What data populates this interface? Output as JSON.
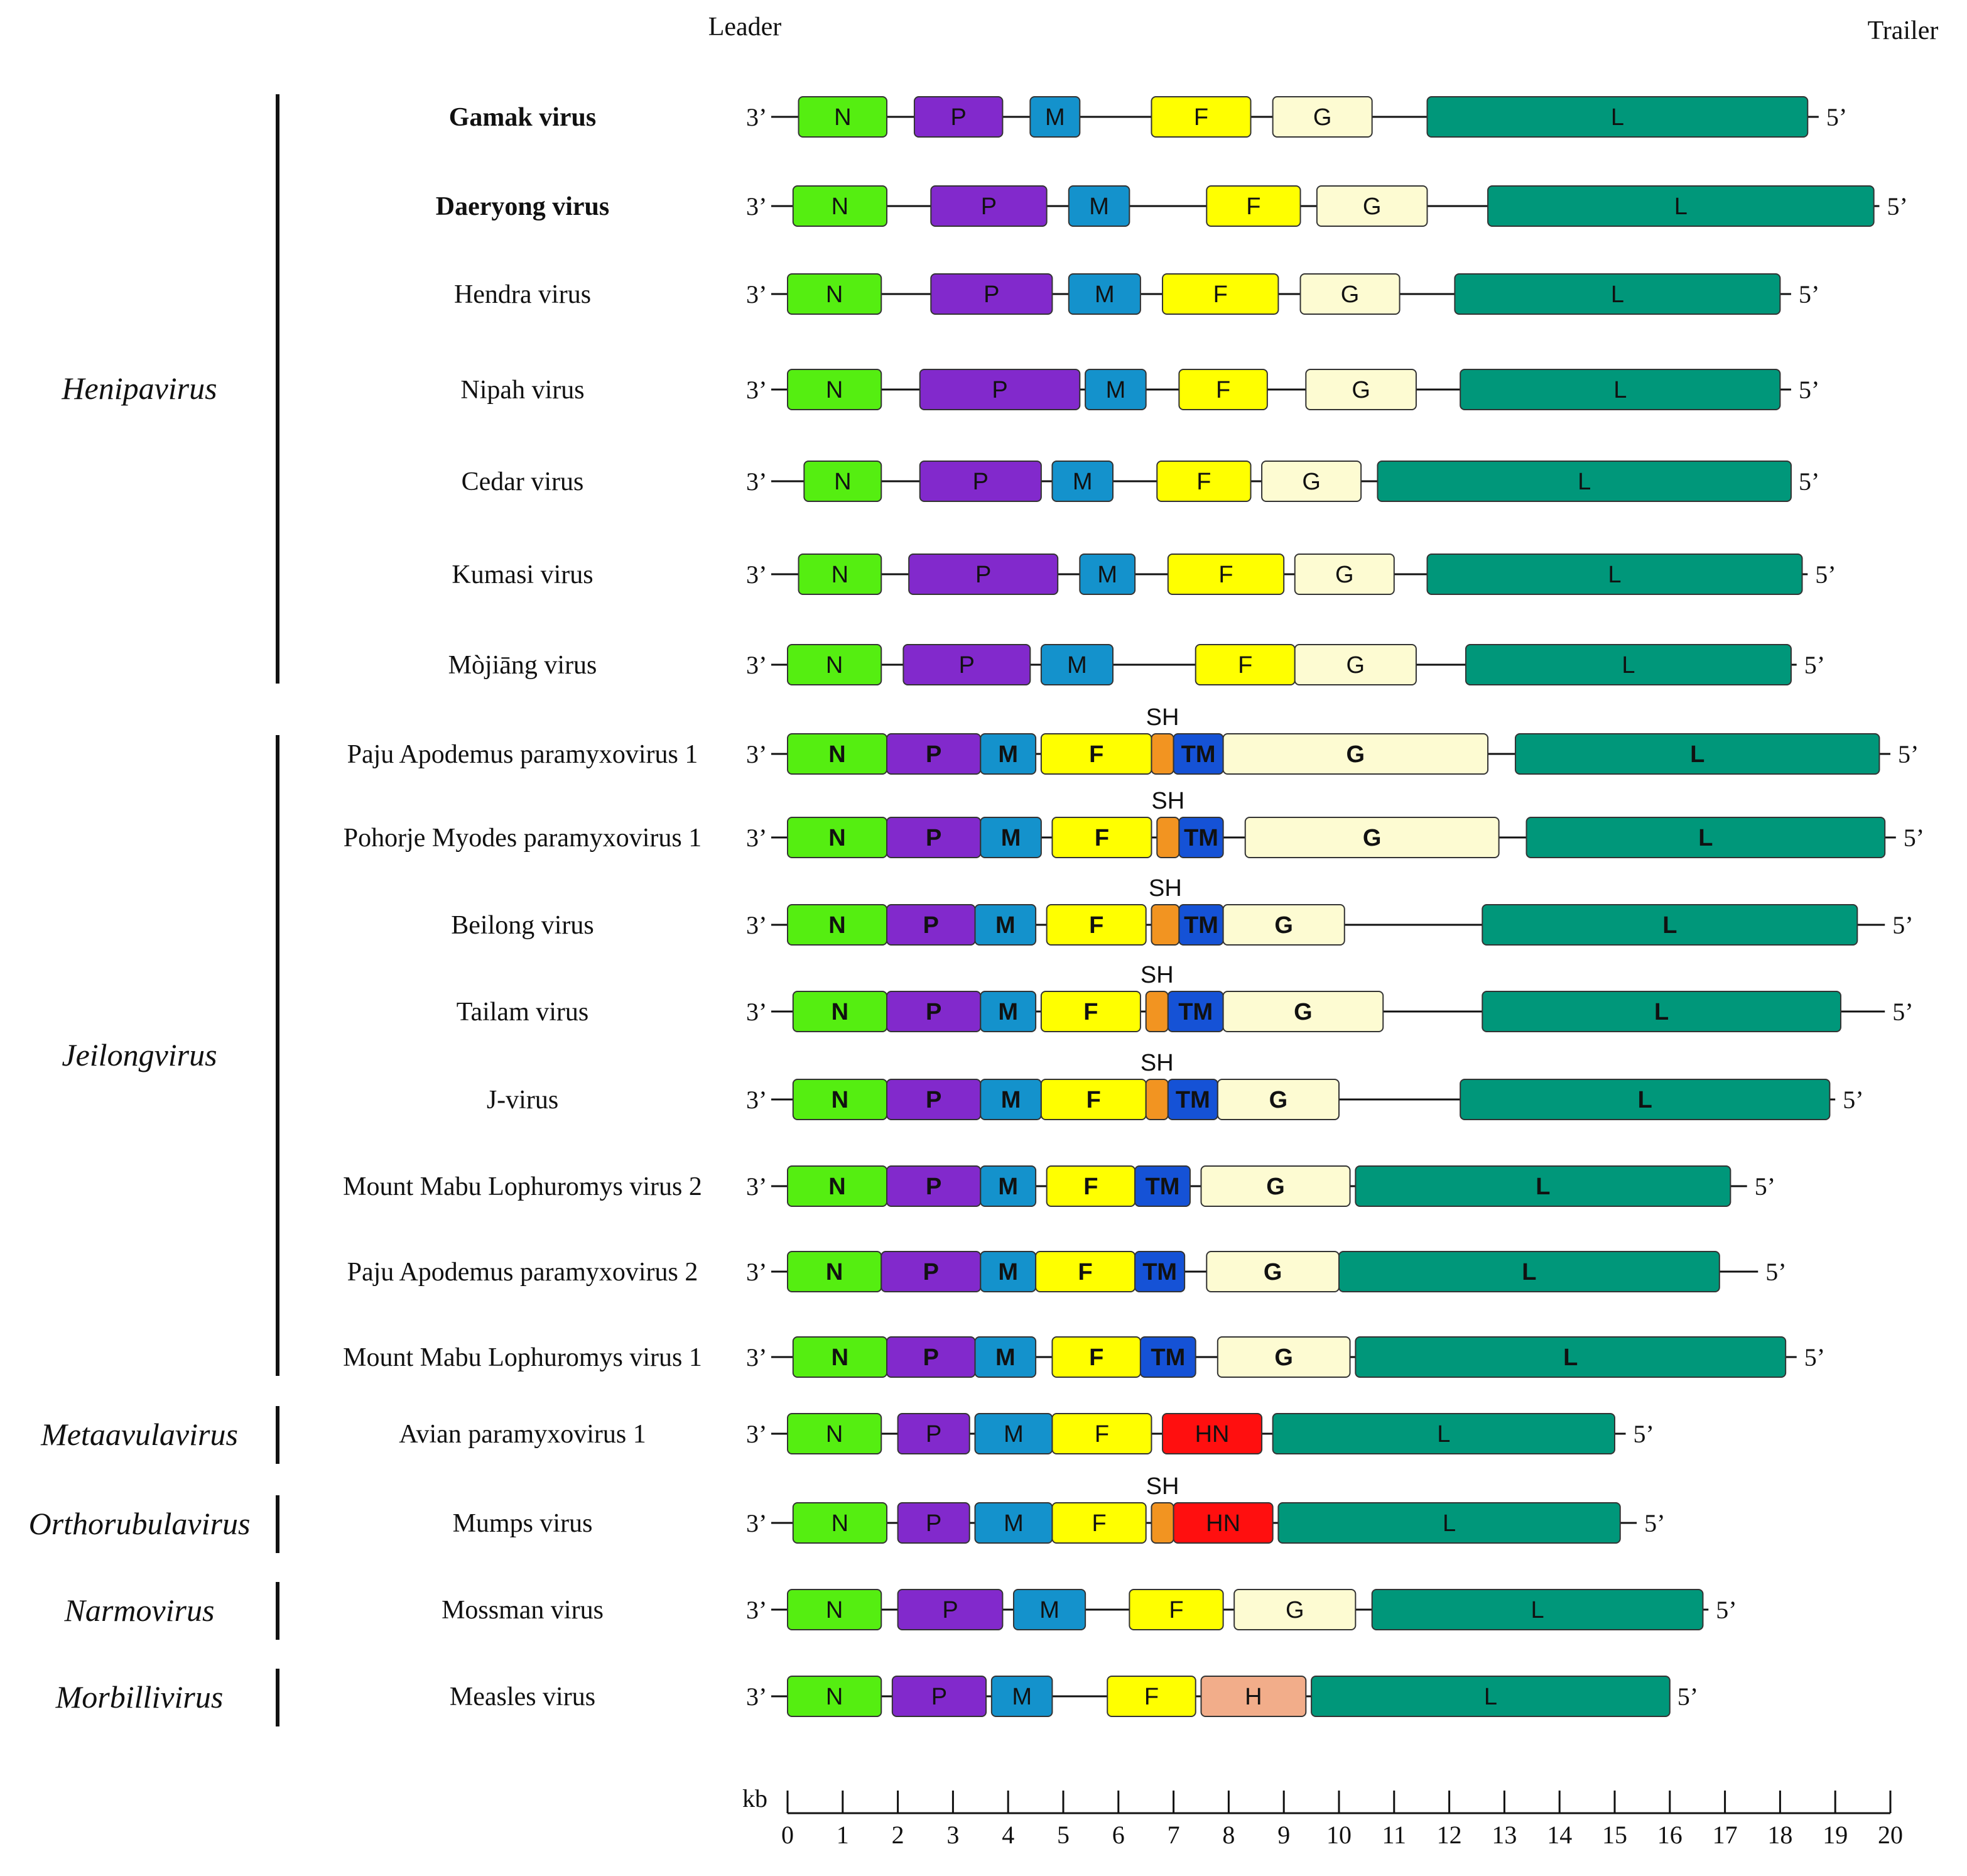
{
  "header": {
    "leader": "Leader",
    "trailer": "Trailer"
  },
  "end_labels": {
    "three_prime": "3’",
    "five_prime": "5’"
  },
  "sh_label": "SH",
  "gene_colors": {
    "N": "#55ee11",
    "P": "#8229cc",
    "M": "#1492cc",
    "F": "#ffff00",
    "G": "#fdfbd2",
    "L": "#00977a",
    "SH": "#f29421",
    "TM": "#1552d6",
    "HN": "#ff0f0f",
    "H": "#f2ad8a"
  },
  "genera": [
    {
      "name": "Henipavirus",
      "first": 0,
      "last": 6
    },
    {
      "name": "Jeilongvirus",
      "first": 7,
      "last": 14
    },
    {
      "name": "Metaavulavirus",
      "first": 15,
      "last": 15
    },
    {
      "name": "Orthorubulavirus",
      "first": 16,
      "last": 16
    },
    {
      "name": "Narmovirus",
      "first": 17,
      "last": 17
    },
    {
      "name": "Morbillivirus",
      "first": 18,
      "last": 18
    }
  ],
  "viruses": [
    {
      "name": "Gamak virus",
      "color": "#ff1a1a",
      "bold": true,
      "length_kb": 18.7,
      "genes": [
        {
          "g": "N",
          "s": 0.2,
          "e": 1.8
        },
        {
          "g": "P",
          "s": 2.3,
          "e": 3.9
        },
        {
          "g": "M",
          "s": 4.4,
          "e": 5.3
        },
        {
          "g": "F",
          "s": 6.6,
          "e": 8.4
        },
        {
          "g": "G",
          "s": 8.8,
          "e": 10.6
        },
        {
          "g": "L",
          "s": 11.6,
          "e": 18.5
        }
      ]
    },
    {
      "name": "Daeryong virus",
      "color": "#1a1aee",
      "bold": true,
      "length_kb": 19.8,
      "genes": [
        {
          "g": "N",
          "s": 0.1,
          "e": 1.8
        },
        {
          "g": "P",
          "s": 2.6,
          "e": 4.7
        },
        {
          "g": "M",
          "s": 5.1,
          "e": 6.2
        },
        {
          "g": "F",
          "s": 7.6,
          "e": 9.3
        },
        {
          "g": "G",
          "s": 9.6,
          "e": 11.6
        },
        {
          "g": "L",
          "s": 12.7,
          "e": 19.7
        }
      ]
    },
    {
      "name": "Hendra virus",
      "color": "#111111",
      "bold": false,
      "length_kb": 18.2,
      "genes": [
        {
          "g": "N",
          "s": 0.0,
          "e": 1.7
        },
        {
          "g": "P",
          "s": 2.6,
          "e": 4.8
        },
        {
          "g": "M",
          "s": 5.1,
          "e": 6.4
        },
        {
          "g": "F",
          "s": 6.8,
          "e": 8.9
        },
        {
          "g": "G",
          "s": 9.3,
          "e": 11.1
        },
        {
          "g": "L",
          "s": 12.1,
          "e": 18.0
        }
      ]
    },
    {
      "name": "Nipah virus",
      "color": "#111111",
      "bold": false,
      "length_kb": 18.2,
      "genes": [
        {
          "g": "N",
          "s": 0.0,
          "e": 1.7
        },
        {
          "g": "P",
          "s": 2.4,
          "e": 5.3
        },
        {
          "g": "M",
          "s": 5.4,
          "e": 6.5
        },
        {
          "g": "F",
          "s": 7.1,
          "e": 8.7
        },
        {
          "g": "G",
          "s": 9.4,
          "e": 11.4
        },
        {
          "g": "L",
          "s": 12.2,
          "e": 18.0
        }
      ]
    },
    {
      "name": "Cedar virus",
      "color": "#111111",
      "bold": false,
      "length_kb": 18.2,
      "genes": [
        {
          "g": "N",
          "s": 0.3,
          "e": 1.7
        },
        {
          "g": "P",
          "s": 2.4,
          "e": 4.6
        },
        {
          "g": "M",
          "s": 4.8,
          "e": 5.9
        },
        {
          "g": "F",
          "s": 6.7,
          "e": 8.4
        },
        {
          "g": "G",
          "s": 8.6,
          "e": 10.4
        },
        {
          "g": "L",
          "s": 10.7,
          "e": 18.2
        }
      ]
    },
    {
      "name": "Kumasi virus",
      "color": "#111111",
      "bold": false,
      "length_kb": 18.5,
      "genes": [
        {
          "g": "N",
          "s": 0.2,
          "e": 1.7
        },
        {
          "g": "P",
          "s": 2.2,
          "e": 4.9
        },
        {
          "g": "M",
          "s": 5.3,
          "e": 6.3
        },
        {
          "g": "F",
          "s": 6.9,
          "e": 9.0
        },
        {
          "g": "G",
          "s": 9.2,
          "e": 11.0
        },
        {
          "g": "L",
          "s": 11.6,
          "e": 18.4
        }
      ]
    },
    {
      "name": "Mòjiāng virus",
      "color": "#111111",
      "bold": false,
      "length_kb": 18.3,
      "genes": [
        {
          "g": "N",
          "s": 0.0,
          "e": 1.7
        },
        {
          "g": "P",
          "s": 2.1,
          "e": 4.4
        },
        {
          "g": "M",
          "s": 4.6,
          "e": 5.9
        },
        {
          "g": "F",
          "s": 7.4,
          "e": 9.2
        },
        {
          "g": "G",
          "s": 9.2,
          "e": 11.4
        },
        {
          "g": "L",
          "s": 12.3,
          "e": 18.2
        }
      ]
    },
    {
      "name": "Paju Apodemus paramyxovirus 1",
      "color": "#111111",
      "bold": false,
      "length_kb": 20.0,
      "genes": [
        {
          "g": "N",
          "s": 0.0,
          "e": 1.8
        },
        {
          "g": "P",
          "s": 1.8,
          "e": 3.5
        },
        {
          "g": "M",
          "s": 3.5,
          "e": 4.5
        },
        {
          "g": "F",
          "s": 4.6,
          "e": 6.6
        },
        {
          "g": "SH",
          "s": 6.6,
          "e": 7.0
        },
        {
          "g": "TM",
          "s": 7.0,
          "e": 7.9
        },
        {
          "g": "G",
          "s": 7.9,
          "e": 12.7
        },
        {
          "g": "L",
          "s": 13.2,
          "e": 19.8
        }
      ]
    },
    {
      "name": "Pohorje Myodes paramyxovirus 1",
      "color": "#111111",
      "bold": false,
      "length_kb": 20.1,
      "genes": [
        {
          "g": "N",
          "s": 0.0,
          "e": 1.8
        },
        {
          "g": "P",
          "s": 1.8,
          "e": 3.5
        },
        {
          "g": "M",
          "s": 3.5,
          "e": 4.6
        },
        {
          "g": "F",
          "s": 4.8,
          "e": 6.6
        },
        {
          "g": "SH",
          "s": 6.7,
          "e": 7.1
        },
        {
          "g": "TM",
          "s": 7.1,
          "e": 7.9
        },
        {
          "g": "G",
          "s": 8.3,
          "e": 12.9
        },
        {
          "g": "L",
          "s": 13.4,
          "e": 19.9
        }
      ]
    },
    {
      "name": "Beilong virus",
      "color": "#111111",
      "bold": false,
      "length_kb": 19.9,
      "genes": [
        {
          "g": "N",
          "s": 0.0,
          "e": 1.8
        },
        {
          "g": "P",
          "s": 1.8,
          "e": 3.4
        },
        {
          "g": "M",
          "s": 3.4,
          "e": 4.5
        },
        {
          "g": "F",
          "s": 4.7,
          "e": 6.5
        },
        {
          "g": "SH",
          "s": 6.6,
          "e": 7.1
        },
        {
          "g": "TM",
          "s": 7.1,
          "e": 7.9
        },
        {
          "g": "G",
          "s": 7.9,
          "e": 10.1
        },
        {
          "g": "L",
          "s": 12.6,
          "e": 19.4
        }
      ]
    },
    {
      "name": "Tailam virus",
      "color": "#111111",
      "bold": false,
      "length_kb": 19.9,
      "genes": [
        {
          "g": "N",
          "s": 0.1,
          "e": 1.8
        },
        {
          "g": "P",
          "s": 1.8,
          "e": 3.5
        },
        {
          "g": "M",
          "s": 3.5,
          "e": 4.5
        },
        {
          "g": "F",
          "s": 4.6,
          "e": 6.4
        },
        {
          "g": "SH",
          "s": 6.5,
          "e": 6.9
        },
        {
          "g": "TM",
          "s": 6.9,
          "e": 7.9
        },
        {
          "g": "G",
          "s": 7.9,
          "e": 10.8
        },
        {
          "g": "L",
          "s": 12.6,
          "e": 19.1
        }
      ]
    },
    {
      "name": "J-virus",
      "color": "#111111",
      "bold": false,
      "length_kb": 19.0,
      "genes": [
        {
          "g": "N",
          "s": 0.1,
          "e": 1.8
        },
        {
          "g": "P",
          "s": 1.8,
          "e": 3.5
        },
        {
          "g": "M",
          "s": 3.5,
          "e": 4.6
        },
        {
          "g": "F",
          "s": 4.6,
          "e": 6.5
        },
        {
          "g": "SH",
          "s": 6.5,
          "e": 6.9
        },
        {
          "g": "TM",
          "s": 6.9,
          "e": 7.8
        },
        {
          "g": "G",
          "s": 7.8,
          "e": 10.0
        },
        {
          "g": "L",
          "s": 12.2,
          "e": 18.9
        }
      ]
    },
    {
      "name": "Mount Mabu Lophuromys virus 2",
      "color": "#111111",
      "bold": false,
      "length_kb": 17.4,
      "genes": [
        {
          "g": "N",
          "s": 0.0,
          "e": 1.8
        },
        {
          "g": "P",
          "s": 1.8,
          "e": 3.5
        },
        {
          "g": "M",
          "s": 3.5,
          "e": 4.5
        },
        {
          "g": "F",
          "s": 4.7,
          "e": 6.3
        },
        {
          "g": "TM",
          "s": 6.3,
          "e": 7.3
        },
        {
          "g": "G",
          "s": 7.5,
          "e": 10.2
        },
        {
          "g": "L",
          "s": 10.3,
          "e": 17.1
        }
      ]
    },
    {
      "name": "Paju Apodemus paramyxovirus 2",
      "color": "#111111",
      "bold": false,
      "length_kb": 17.6,
      "genes": [
        {
          "g": "N",
          "s": 0.0,
          "e": 1.7
        },
        {
          "g": "P",
          "s": 1.7,
          "e": 3.5
        },
        {
          "g": "M",
          "s": 3.5,
          "e": 4.5
        },
        {
          "g": "F",
          "s": 4.5,
          "e": 6.3
        },
        {
          "g": "TM",
          "s": 6.3,
          "e": 7.2
        },
        {
          "g": "G",
          "s": 7.6,
          "e": 10.0
        },
        {
          "g": "L",
          "s": 10.0,
          "e": 16.9
        }
      ]
    },
    {
      "name": "Mount Mabu Lophuromys virus 1",
      "color": "#111111",
      "bold": false,
      "length_kb": 18.3,
      "genes": [
        {
          "g": "N",
          "s": 0.1,
          "e": 1.8
        },
        {
          "g": "P",
          "s": 1.8,
          "e": 3.4
        },
        {
          "g": "M",
          "s": 3.4,
          "e": 4.5
        },
        {
          "g": "F",
          "s": 4.8,
          "e": 6.4
        },
        {
          "g": "TM",
          "s": 6.4,
          "e": 7.4
        },
        {
          "g": "G",
          "s": 7.8,
          "e": 10.2
        },
        {
          "g": "L",
          "s": 10.3,
          "e": 18.1
        }
      ]
    },
    {
      "name": "Avian paramyxovirus 1",
      "color": "#111111",
      "bold": false,
      "length_kb": 15.2,
      "genes": [
        {
          "g": "N",
          "s": 0.0,
          "e": 1.7
        },
        {
          "g": "P",
          "s": 2.0,
          "e": 3.3
        },
        {
          "g": "M",
          "s": 3.4,
          "e": 4.8
        },
        {
          "g": "F",
          "s": 4.8,
          "e": 6.6
        },
        {
          "g": "HN",
          "s": 6.8,
          "e": 8.6
        },
        {
          "g": "L",
          "s": 8.8,
          "e": 15.0
        }
      ]
    },
    {
      "name": "Mumps virus",
      "color": "#111111",
      "bold": false,
      "length_kb": 15.4,
      "genes": [
        {
          "g": "N",
          "s": 0.1,
          "e": 1.8
        },
        {
          "g": "P",
          "s": 2.0,
          "e": 3.3
        },
        {
          "g": "M",
          "s": 3.4,
          "e": 4.8
        },
        {
          "g": "F",
          "s": 4.8,
          "e": 6.5
        },
        {
          "g": "SH",
          "s": 6.6,
          "e": 7.0
        },
        {
          "g": "HN",
          "s": 7.0,
          "e": 8.8
        },
        {
          "g": "L",
          "s": 8.9,
          "e": 15.1
        }
      ]
    },
    {
      "name": "Mossman virus",
      "color": "#111111",
      "bold": false,
      "length_kb": 16.7,
      "genes": [
        {
          "g": "N",
          "s": 0.0,
          "e": 1.7
        },
        {
          "g": "P",
          "s": 2.0,
          "e": 3.9
        },
        {
          "g": "M",
          "s": 4.1,
          "e": 5.4
        },
        {
          "g": "F",
          "s": 6.2,
          "e": 7.9
        },
        {
          "g": "G",
          "s": 8.1,
          "e": 10.3
        },
        {
          "g": "L",
          "s": 10.6,
          "e": 16.6
        }
      ]
    },
    {
      "name": "Measles virus",
      "color": "#111111",
      "bold": false,
      "length_kb": 16.0,
      "genes": [
        {
          "g": "N",
          "s": 0.0,
          "e": 1.7
        },
        {
          "g": "P",
          "s": 1.9,
          "e": 3.6
        },
        {
          "g": "M",
          "s": 3.7,
          "e": 4.8
        },
        {
          "g": "F",
          "s": 5.8,
          "e": 7.4
        },
        {
          "g": "H",
          "s": 7.5,
          "e": 9.4
        },
        {
          "g": "L",
          "s": 9.5,
          "e": 16.0
        }
      ]
    }
  ],
  "scale": {
    "unit": "kb",
    "min": 0,
    "max": 20,
    "ticks": [
      0,
      1,
      2,
      3,
      4,
      5,
      6,
      7,
      8,
      9,
      10,
      11,
      12,
      13,
      14,
      15,
      16,
      17,
      18,
      19,
      20
    ]
  }
}
